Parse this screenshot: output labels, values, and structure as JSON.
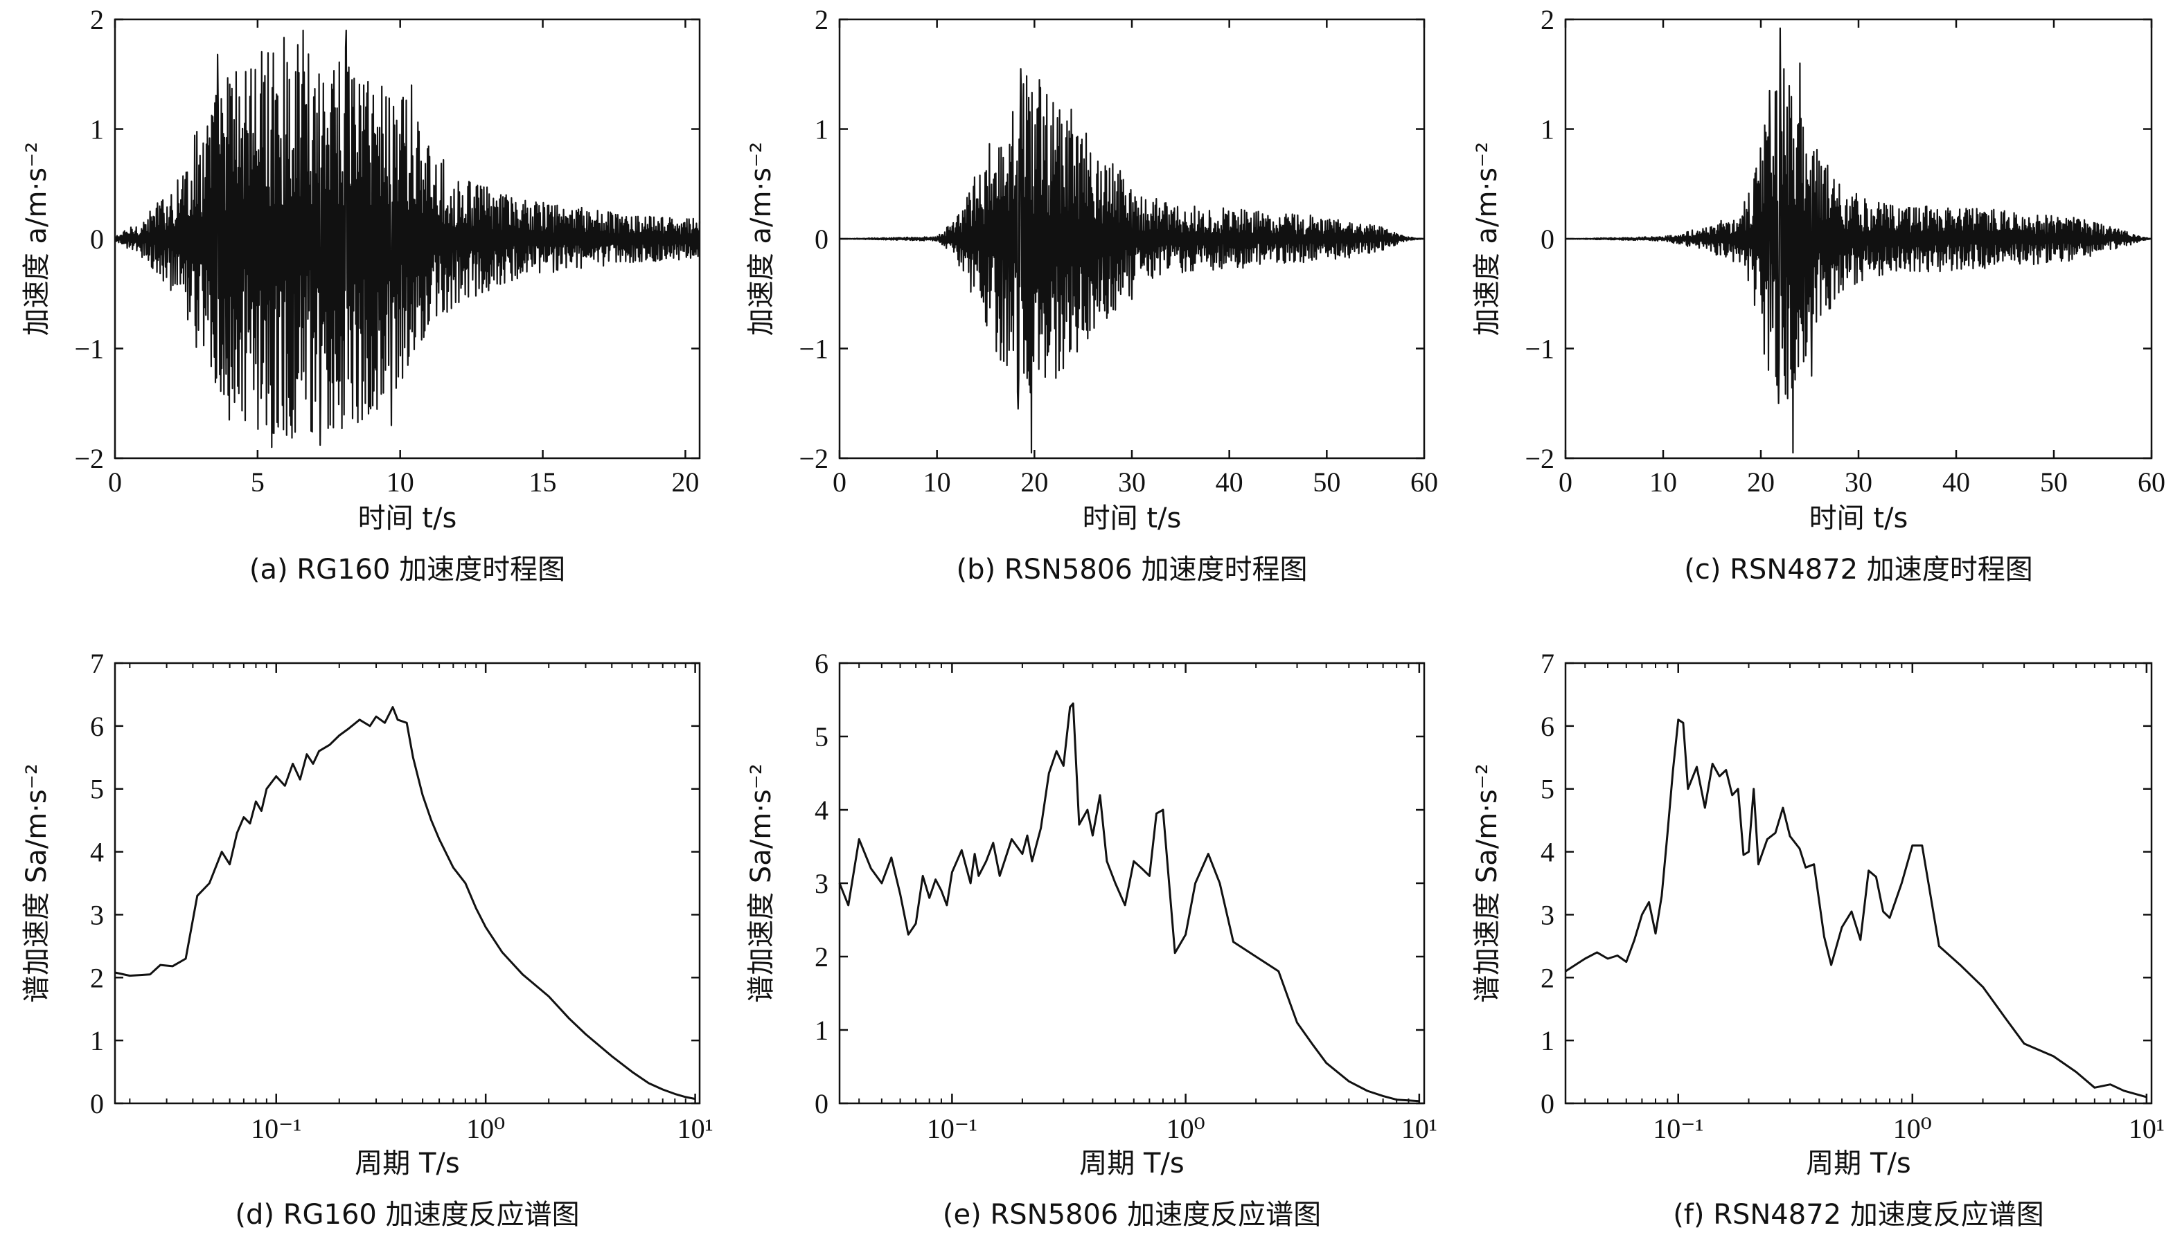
{
  "panels": [
    {
      "caption": "(a) RG160 加速度时程图",
      "ylabel": "加速度 a/m·s⁻²",
      "xlabel": "时间 t/s",
      "chart_data": {
        "type": "line",
        "title": "",
        "xlabel": "时间 t/s",
        "ylabel": "加速度 a/m·s⁻²",
        "xlim": [
          0,
          20.5
        ],
        "ylim": [
          -2,
          2
        ],
        "xticks": [
          "0",
          "5",
          "10",
          "15",
          "20"
        ],
        "yticks": [
          "−2",
          "−1",
          "0",
          "1",
          "2"
        ],
        "grid": false,
        "series": [
          {
            "envelope": [
              [
                0,
                0.02
              ],
              [
                1,
                0.18
              ],
              [
                2,
                0.5
              ],
              [
                3,
                1.1
              ],
              [
                4,
                1.6
              ],
              [
                5,
                1.75
              ],
              [
                6,
                1.85
              ],
              [
                7,
                1.8
              ],
              [
                8,
                1.8
              ],
              [
                9,
                1.6
              ],
              [
                10,
                1.45
              ],
              [
                11,
                0.85
              ],
              [
                12,
                0.6
              ],
              [
                14,
                0.38
              ],
              [
                16,
                0.3
              ],
              [
                18,
                0.22
              ],
              [
                20.5,
                0.18
              ]
            ],
            "peaks": [
              {
                "x": 4.0,
                "y": -1.65
              },
              {
                "x": 5.5,
                "y": -1.9
              },
              {
                "x": 6.6,
                "y": 1.9
              },
              {
                "x": 7.2,
                "y": -1.88
              },
              {
                "x": 8.1,
                "y": 1.9
              },
              {
                "x": 9.7,
                "y": -1.7
              },
              {
                "x": 3.6,
                "y": 1.68
              },
              {
                "x": 10.4,
                "y": 1.4
              }
            ],
            "values": []
          }
        ]
      }
    },
    {
      "caption": "(b) RSN5806 加速度时程图",
      "ylabel": "加速度 a/m·s⁻²",
      "xlabel": "时间 t/s",
      "chart_data": {
        "type": "line",
        "title": "",
        "xlabel": "时间 t/s",
        "ylabel": "加速度 a/m·s⁻²",
        "xlim": [
          0,
          60
        ],
        "ylim": [
          -2,
          2
        ],
        "xticks": [
          "0",
          "10",
          "20",
          "30",
          "40",
          "50",
          "60"
        ],
        "yticks": [
          "−2",
          "−1",
          "0",
          "1",
          "2"
        ],
        "grid": false,
        "series": [
          {
            "envelope": [
              [
                0,
                0
              ],
              [
                10,
                0.02
              ],
              [
                12,
                0.2
              ],
              [
                15,
                0.8
              ],
              [
                17,
                1.3
              ],
              [
                19,
                1.5
              ],
              [
                21,
                1.4
              ],
              [
                23,
                1.2
              ],
              [
                26,
                0.9
              ],
              [
                28,
                0.7
              ],
              [
                31,
                0.4
              ],
              [
                36,
                0.3
              ],
              [
                45,
                0.25
              ],
              [
                52,
                0.18
              ],
              [
                56,
                0.1
              ],
              [
                58,
                0.02
              ],
              [
                60,
                0
              ]
            ],
            "peaks": [
              {
                "x": 18.6,
                "y": 1.55
              },
              {
                "x": 19.7,
                "y": -1.95
              },
              {
                "x": 18.3,
                "y": -1.55
              },
              {
                "x": 20.5,
                "y": 1.45
              },
              {
                "x": 23.8,
                "y": 1.18
              },
              {
                "x": 22.5,
                "y": -1.2
              },
              {
                "x": 30.0,
                "y": -0.55
              }
            ],
            "values": []
          }
        ]
      }
    },
    {
      "caption": "(c) RSN4872 加速度时程图",
      "ylabel": "加速度 a/m·s⁻²",
      "xlabel": "时间 t/s",
      "chart_data": {
        "type": "line",
        "title": "",
        "xlabel": "时间 t/s",
        "ylabel": "加速度 a/m·s⁻²",
        "xlim": [
          0,
          60
        ],
        "ylim": [
          -2,
          2
        ],
        "xticks": [
          "0",
          "10",
          "20",
          "30",
          "40",
          "50",
          "60"
        ],
        "yticks": [
          "−2",
          "−1",
          "0",
          "1",
          "2"
        ],
        "grid": false,
        "series": [
          {
            "envelope": [
              [
                0,
                0
              ],
              [
                10,
                0.02
              ],
              [
                13,
                0.08
              ],
              [
                17,
                0.2
              ],
              [
                19,
                0.45
              ],
              [
                20,
                0.95
              ],
              [
                21,
                1.3
              ],
              [
                22,
                1.6
              ],
              [
                23,
                1.5
              ],
              [
                24,
                1.2
              ],
              [
                26,
                0.8
              ],
              [
                28,
                0.55
              ],
              [
                31,
                0.35
              ],
              [
                35,
                0.3
              ],
              [
                40,
                0.3
              ],
              [
                46,
                0.25
              ],
              [
                52,
                0.2
              ],
              [
                57,
                0.08
              ],
              [
                59,
                0.02
              ],
              [
                60,
                0
              ]
            ],
            "peaks": [
              {
                "x": 22.0,
                "y": 1.92
              },
              {
                "x": 23.3,
                "y": -1.95
              },
              {
                "x": 24.0,
                "y": 1.6
              },
              {
                "x": 21.8,
                "y": -1.5
              },
              {
                "x": 25.2,
                "y": -1.25
              },
              {
                "x": 20.9,
                "y": 1.35
              }
            ],
            "values": []
          }
        ]
      }
    },
    {
      "caption": "(d) RG160 加速度反应谱图",
      "ylabel": "谱加速度 Sa/m·s⁻²",
      "xlabel": "周期 T/s",
      "chart_data": {
        "type": "line",
        "title": "",
        "xlabel": "周期 T/s",
        "ylabel": "谱加速度 Sa/m·s⁻²",
        "xscale": "log",
        "xlim": [
          0.017,
          10.5
        ],
        "ylim": [
          0,
          7
        ],
        "xticks": [
          "10⁻¹",
          "10⁰",
          "10¹"
        ],
        "yticks": [
          "0",
          "1",
          "2",
          "3",
          "4",
          "5",
          "6",
          "7"
        ],
        "grid": false,
        "series": [
          {
            "x": [
              0.017,
              0.02,
              0.025,
              0.028,
              0.032,
              0.037,
              0.042,
              0.048,
              0.055,
              0.06,
              0.065,
              0.07,
              0.075,
              0.08,
              0.085,
              0.09,
              0.1,
              0.11,
              0.12,
              0.13,
              0.14,
              0.15,
              0.16,
              0.18,
              0.2,
              0.22,
              0.25,
              0.28,
              0.3,
              0.33,
              0.36,
              0.38,
              0.42,
              0.45,
              0.5,
              0.55,
              0.6,
              0.7,
              0.8,
              0.9,
              1.0,
              1.2,
              1.5,
              2.0,
              2.5,
              3.0,
              4.0,
              5.0,
              6.0,
              7.0,
              8.0,
              9.0,
              10.0
            ],
            "y": [
              2.08,
              2.03,
              2.05,
              2.2,
              2.18,
              2.3,
              3.3,
              3.5,
              4.0,
              3.8,
              4.3,
              4.55,
              4.45,
              4.8,
              4.65,
              5.0,
              5.2,
              5.05,
              5.4,
              5.15,
              5.55,
              5.4,
              5.6,
              5.7,
              5.85,
              5.95,
              6.1,
              6.0,
              6.15,
              6.05,
              6.3,
              6.1,
              6.05,
              5.5,
              4.9,
              4.5,
              4.2,
              3.75,
              3.5,
              3.1,
              2.8,
              2.4,
              2.05,
              1.7,
              1.35,
              1.1,
              0.75,
              0.5,
              0.32,
              0.22,
              0.15,
              0.1,
              0.07
            ]
          }
        ]
      }
    },
    {
      "caption": "(e) RSN5806 加速度反应谱图",
      "ylabel": "谱加速度 Sa/m·s⁻²",
      "xlabel": "周期 T/s",
      "chart_data": {
        "type": "line",
        "title": "",
        "xlabel": "周期 T/s",
        "ylabel": "谱加速度 Sa/m·s⁻²",
        "xscale": "log",
        "xlim": [
          0.033,
          10.5
        ],
        "ylim": [
          0,
          6
        ],
        "xticks": [
          "10⁻¹",
          "10⁰",
          "10¹"
        ],
        "yticks": [
          "0",
          "1",
          "2",
          "3",
          "4",
          "5",
          "6"
        ],
        "grid": false,
        "series": [
          {
            "x": [
              0.033,
              0.036,
              0.04,
              0.045,
              0.05,
              0.055,
              0.06,
              0.065,
              0.07,
              0.075,
              0.08,
              0.085,
              0.09,
              0.095,
              0.1,
              0.11,
              0.12,
              0.125,
              0.13,
              0.14,
              0.15,
              0.16,
              0.18,
              0.2,
              0.21,
              0.22,
              0.24,
              0.26,
              0.28,
              0.3,
              0.32,
              0.33,
              0.35,
              0.38,
              0.4,
              0.43,
              0.46,
              0.5,
              0.55,
              0.6,
              0.65,
              0.7,
              0.75,
              0.8,
              0.9,
              1.0,
              1.1,
              1.25,
              1.4,
              1.6,
              2.0,
              2.5,
              3.0,
              3.5,
              4.0,
              5.0,
              6.0,
              7.0,
              8.0,
              10.0
            ],
            "y": [
              3.0,
              2.7,
              3.6,
              3.2,
              3.0,
              3.35,
              2.85,
              2.3,
              2.45,
              3.1,
              2.8,
              3.05,
              2.9,
              2.7,
              3.15,
              3.45,
              3.0,
              3.4,
              3.1,
              3.3,
              3.55,
              3.1,
              3.6,
              3.4,
              3.65,
              3.3,
              3.75,
              4.5,
              4.8,
              4.6,
              5.4,
              5.45,
              3.8,
              4.0,
              3.65,
              4.2,
              3.3,
              3.0,
              2.7,
              3.3,
              3.2,
              3.1,
              3.95,
              4.0,
              2.05,
              2.3,
              3.0,
              3.4,
              3.0,
              2.2,
              2.0,
              1.8,
              1.1,
              0.8,
              0.55,
              0.3,
              0.17,
              0.1,
              0.05,
              0.03
            ]
          }
        ]
      }
    },
    {
      "caption": "(f) RSN4872 加速度反应谱图",
      "ylabel": "谱加速度 Sa/m·s⁻²",
      "xlabel": "周期 T/s",
      "chart_data": {
        "type": "line",
        "title": "",
        "xlabel": "周期 T/s",
        "ylabel": "谱加速度 Sa/m·s⁻²",
        "xscale": "log",
        "xlim": [
          0.033,
          10.5
        ],
        "ylim": [
          0,
          7
        ],
        "xticks": [
          "10⁻¹",
          "10⁰",
          "10¹"
        ],
        "yticks": [
          "0",
          "1",
          "2",
          "3",
          "4",
          "5",
          "6",
          "7"
        ],
        "grid": false,
        "series": [
          {
            "x": [
              0.033,
              0.04,
              0.045,
              0.05,
              0.055,
              0.06,
              0.065,
              0.07,
              0.075,
              0.08,
              0.085,
              0.09,
              0.095,
              0.1,
              0.105,
              0.11,
              0.12,
              0.13,
              0.14,
              0.15,
              0.16,
              0.17,
              0.18,
              0.19,
              0.2,
              0.21,
              0.22,
              0.24,
              0.26,
              0.28,
              0.3,
              0.33,
              0.35,
              0.38,
              0.42,
              0.45,
              0.5,
              0.55,
              0.6,
              0.65,
              0.7,
              0.75,
              0.8,
              0.9,
              1.0,
              1.1,
              1.3,
              1.6,
              2.0,
              2.5,
              3.0,
              4.0,
              5.0,
              6.0,
              7.0,
              8.0,
              10.0
            ],
            "y": [
              2.1,
              2.3,
              2.4,
              2.3,
              2.35,
              2.25,
              2.6,
              3.0,
              3.2,
              2.7,
              3.3,
              4.3,
              5.3,
              6.1,
              6.05,
              5.0,
              5.35,
              4.7,
              5.4,
              5.2,
              5.3,
              4.9,
              5.0,
              3.95,
              4.0,
              5.0,
              3.8,
              4.2,
              4.3,
              4.7,
              4.25,
              4.05,
              3.75,
              3.8,
              2.65,
              2.2,
              2.8,
              3.05,
              2.6,
              3.7,
              3.6,
              3.05,
              2.95,
              3.5,
              4.1,
              4.1,
              2.5,
              2.2,
              1.85,
              1.35,
              0.95,
              0.75,
              0.5,
              0.25,
              0.3,
              0.2,
              0.1
            ]
          }
        ]
      }
    }
  ]
}
